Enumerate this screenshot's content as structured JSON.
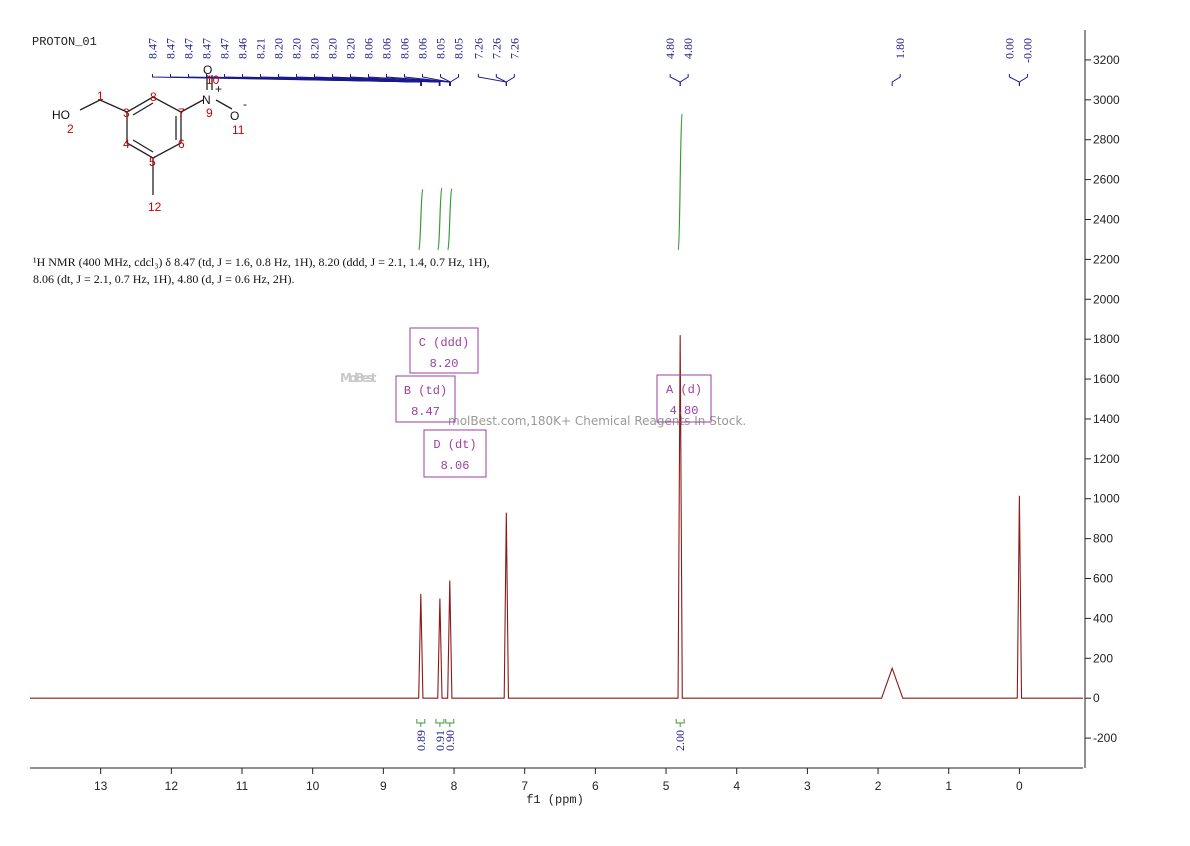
{
  "chart_data": {
    "type": "nmr",
    "title": "PROTON_01",
    "x_label": "f1 (ppm)",
    "xlim": [
      14,
      -0.9
    ],
    "ylim": [
      -350,
      3350
    ],
    "xticks": [
      13,
      12,
      11,
      10,
      9,
      8,
      7,
      6,
      5,
      4,
      3,
      2,
      1,
      0
    ],
    "yticks": [
      -200,
      0,
      200,
      400,
      600,
      800,
      1000,
      1200,
      1400,
      1600,
      1800,
      2000,
      2200,
      2400,
      2600,
      2800,
      3000,
      3200
    ],
    "color": "#8b1a1a",
    "x": [
      14,
      8.5,
      8.47,
      8.44,
      8.23,
      8.2,
      8.17,
      8.09,
      8.06,
      8.03,
      7.29,
      7.26,
      7.23,
      4.83,
      4.8,
      4.77,
      1.95,
      1.8,
      1.65,
      0.03,
      0,
      -0.03,
      -0.9
    ],
    "values": [
      0,
      0,
      523,
      0,
      0,
      500,
      0,
      0,
      590,
      0,
      0,
      930,
      0,
      0,
      1820,
      0,
      0,
      150,
      0,
      0,
      1015,
      0,
      0
    ],
    "peaks": [
      {
        "value": 8.47,
        "label": "8.47"
      },
      {
        "value": 8.47,
        "label": "8.47"
      },
      {
        "value": 8.47,
        "label": "8.47"
      },
      {
        "value": 8.47,
        "label": "8.47"
      },
      {
        "value": 8.47,
        "label": "8.47"
      },
      {
        "value": 8.46,
        "label": "8.46"
      },
      {
        "value": 8.21,
        "label": "8.21"
      },
      {
        "value": 8.2,
        "label": "8.20"
      },
      {
        "value": 8.2,
        "label": "8.20"
      },
      {
        "value": 8.2,
        "label": "8.20"
      },
      {
        "value": 8.2,
        "label": "8.20"
      },
      {
        "value": 8.2,
        "label": "8.20"
      },
      {
        "value": 8.06,
        "label": "8.06"
      },
      {
        "value": 8.06,
        "label": "8.06"
      },
      {
        "value": 8.06,
        "label": "8.06"
      },
      {
        "value": 8.06,
        "label": "8.06"
      },
      {
        "value": 8.05,
        "label": "8.05"
      },
      {
        "value": 8.05,
        "label": "8.05"
      },
      {
        "value": 7.26,
        "label": "7.26"
      },
      {
        "value": 7.26,
        "label": "7.26"
      },
      {
        "value": 7.26,
        "label": "7.26"
      },
      {
        "value": 4.8,
        "label": "4.80"
      },
      {
        "value": 4.8,
        "label": "4.80"
      },
      {
        "value": 1.8,
        "label": "1.80"
      },
      {
        "value": 0,
        "label": "0.00"
      },
      {
        "value": 0,
        "label": "-0.00"
      }
    ],
    "multiplets": [
      {
        "name": "B (td)",
        "shift": {
          "value": 8.47,
          "label": "8.47"
        }
      },
      {
        "name": "C (ddd)",
        "shift": {
          "value": 8.2,
          "label": "8.20"
        }
      },
      {
        "name": "D (dt)",
        "shift": {
          "value": 8.06,
          "label": "8.06"
        }
      },
      {
        "name": "A (d)",
        "shift": {
          "value": 4.8,
          "label": "4.80"
        }
      }
    ],
    "integrals": [
      {
        "value": 0.89,
        "label": "0.89"
      },
      {
        "value": 0.91,
        "label": "0.91"
      },
      {
        "value": 0.9,
        "label": "0.90"
      },
      {
        "value": 2,
        "label": "2.00"
      }
    ],
    "description": [
      "¹H NMR (400 MHz, cdcl₃) δ 8.47 (td, J = 1.6, 0.8 Hz, 1H), 8.20 (ddd, J = 2.1, 1.4, 0.7 Hz, 1H),",
      "8.06 (dt, J = 2.1, 0.7 Hz, 1H), 4.80 (d, J = 0.6 Hz, 2H)."
    ],
    "molecule": {
      "atoms": [
        "HO",
        "2",
        "1",
        "3",
        "8",
        "7",
        "N",
        "+",
        "9",
        "O",
        "-",
        "11",
        "O",
        "10",
        "4",
        "5",
        "6",
        "12"
      ]
    },
    "watermark": {
      "brand": "MolBest",
      "tagline": "molBest.com,180K+ Chemical Reagents In Stock."
    }
  }
}
